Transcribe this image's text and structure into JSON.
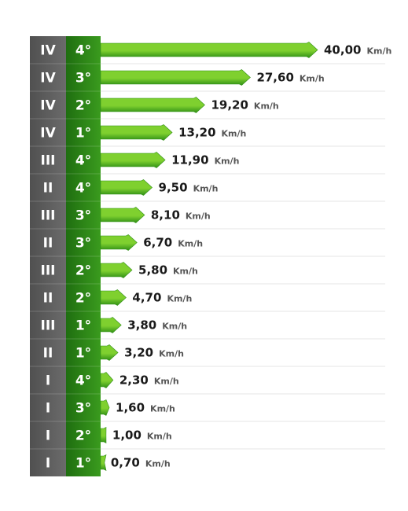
{
  "chart_data": {
    "type": "bar",
    "orientation": "horizontal",
    "unit": "Km/h",
    "colors": {
      "range_column": "#6b6b6b",
      "range_column_dark": "#505050",
      "gear_column": "#3a9b1e",
      "gear_column_dark": "#1f6e10",
      "bar_light": "#7fd02f",
      "bar_dark": "#2f8f16",
      "separator": "#e6e6e6"
    },
    "rows": [
      {
        "range": "IV",
        "gear": "4°",
        "value": 40.0,
        "label": "40,00"
      },
      {
        "range": "IV",
        "gear": "3°",
        "value": 27.6,
        "label": "27,60"
      },
      {
        "range": "IV",
        "gear": "2°",
        "value": 19.2,
        "label": "19,20"
      },
      {
        "range": "IV",
        "gear": "1°",
        "value": 13.2,
        "label": "13,20"
      },
      {
        "range": "III",
        "gear": "4°",
        "value": 11.9,
        "label": "11,90"
      },
      {
        "range": "II",
        "gear": "4°",
        "value": 9.5,
        "label": "9,50"
      },
      {
        "range": "III",
        "gear": "3°",
        "value": 8.1,
        "label": "8,10"
      },
      {
        "range": "II",
        "gear": "3°",
        "value": 6.7,
        "label": "6,70"
      },
      {
        "range": "III",
        "gear": "2°",
        "value": 5.8,
        "label": "5,80"
      },
      {
        "range": "II",
        "gear": "2°",
        "value": 4.7,
        "label": "4,70"
      },
      {
        "range": "III",
        "gear": "1°",
        "value": 3.8,
        "label": "3,80"
      },
      {
        "range": "II",
        "gear": "1°",
        "value": 3.2,
        "label": "3,20"
      },
      {
        "range": "I",
        "gear": "4°",
        "value": 2.3,
        "label": "2,30"
      },
      {
        "range": "I",
        "gear": "3°",
        "value": 1.6,
        "label": "1,60"
      },
      {
        "range": "I",
        "gear": "2°",
        "value": 1.0,
        "label": "1,00"
      },
      {
        "range": "I",
        "gear": "1°",
        "value": 0.7,
        "label": "0,70"
      }
    ]
  }
}
